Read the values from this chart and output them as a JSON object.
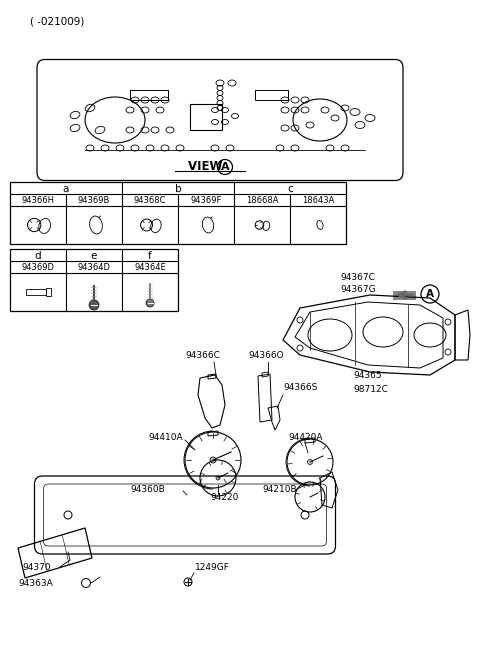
{
  "bg_color": "#ffffff",
  "line_color": "#000000",
  "text_color": "#000000",
  "top_label": "( -021009)",
  "view_label": "VIEW",
  "view_circle": "A",
  "table1_headers": [
    "a",
    "b",
    "c"
  ],
  "table1_pnums": [
    "94366H",
    "94369B",
    "94368C",
    "94369F",
    "18668A",
    "18643A"
  ],
  "table2_headers": [
    "d",
    "e",
    "f"
  ],
  "table2_pnums": [
    "94369D",
    "94364D",
    "94364E"
  ],
  "right_labels": [
    "94367C",
    "94367G"
  ],
  "part_labels": [
    "94366C",
    "94366O",
    "94366S",
    "94365",
    "98712C",
    "94410A",
    "94220",
    "94420A",
    "94210B",
    "94360B",
    "94370",
    "94363A",
    "1249GF"
  ]
}
